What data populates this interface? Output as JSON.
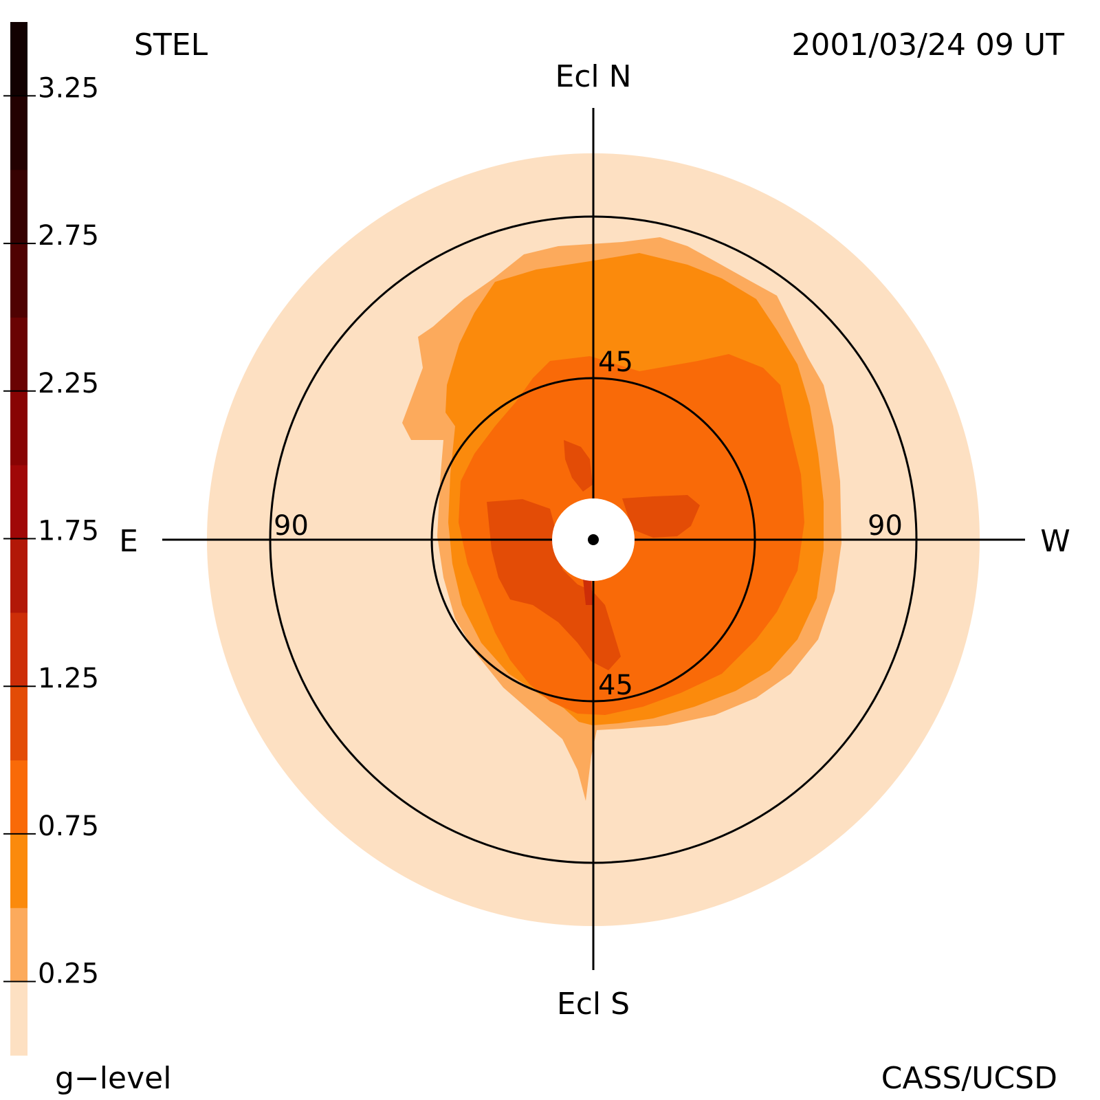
{
  "header": {
    "left": "STEL",
    "right": "2001/03/24 09 UT"
  },
  "footer": {
    "left": "g−level",
    "right": "CASS/UCSD"
  },
  "compass": {
    "north": "Ecl N",
    "south": "Ecl S",
    "east": "E",
    "west": "W"
  },
  "rings": {
    "inner_top": "45",
    "inner_bottom": "45",
    "outer_left": "90",
    "outer_right": "90"
  },
  "colors": {
    "background": "#ffffff",
    "axis": "#000000",
    "sun_disk": "#ffffff",
    "band_0": "#fde0c2",
    "band_1": "#fcaa5c",
    "band_2": "#fb8a0c",
    "band_3": "#f96a08",
    "band_4": "#e34c06",
    "band_5": "#cd2e08"
  },
  "chart_data": {
    "type": "heatmap",
    "projection": "fisheye sky map centered on the Sun, ecliptic coordinates",
    "elongation_rings_deg": [
      45,
      90
    ],
    "colorbar": {
      "variable": "g-level",
      "range": [
        0,
        3.5
      ],
      "step": 0.25,
      "tick_labels": [
        "3.25",
        "2.75",
        "2.25",
        "1.75",
        "1.25",
        "0.75",
        "0.25"
      ],
      "tick_values": [
        3.25,
        2.75,
        2.25,
        1.75,
        1.25,
        0.75,
        0.25
      ],
      "colors": [
        "#fde0c2",
        "#fcaa5c",
        "#fb8a0c",
        "#f96a08",
        "#e34c06",
        "#cd2e08",
        "#b21808",
        "#a00808",
        "#880404",
        "#6a0303",
        "#4f0202",
        "#370101",
        "#230101",
        "#120101"
      ]
    }
  }
}
